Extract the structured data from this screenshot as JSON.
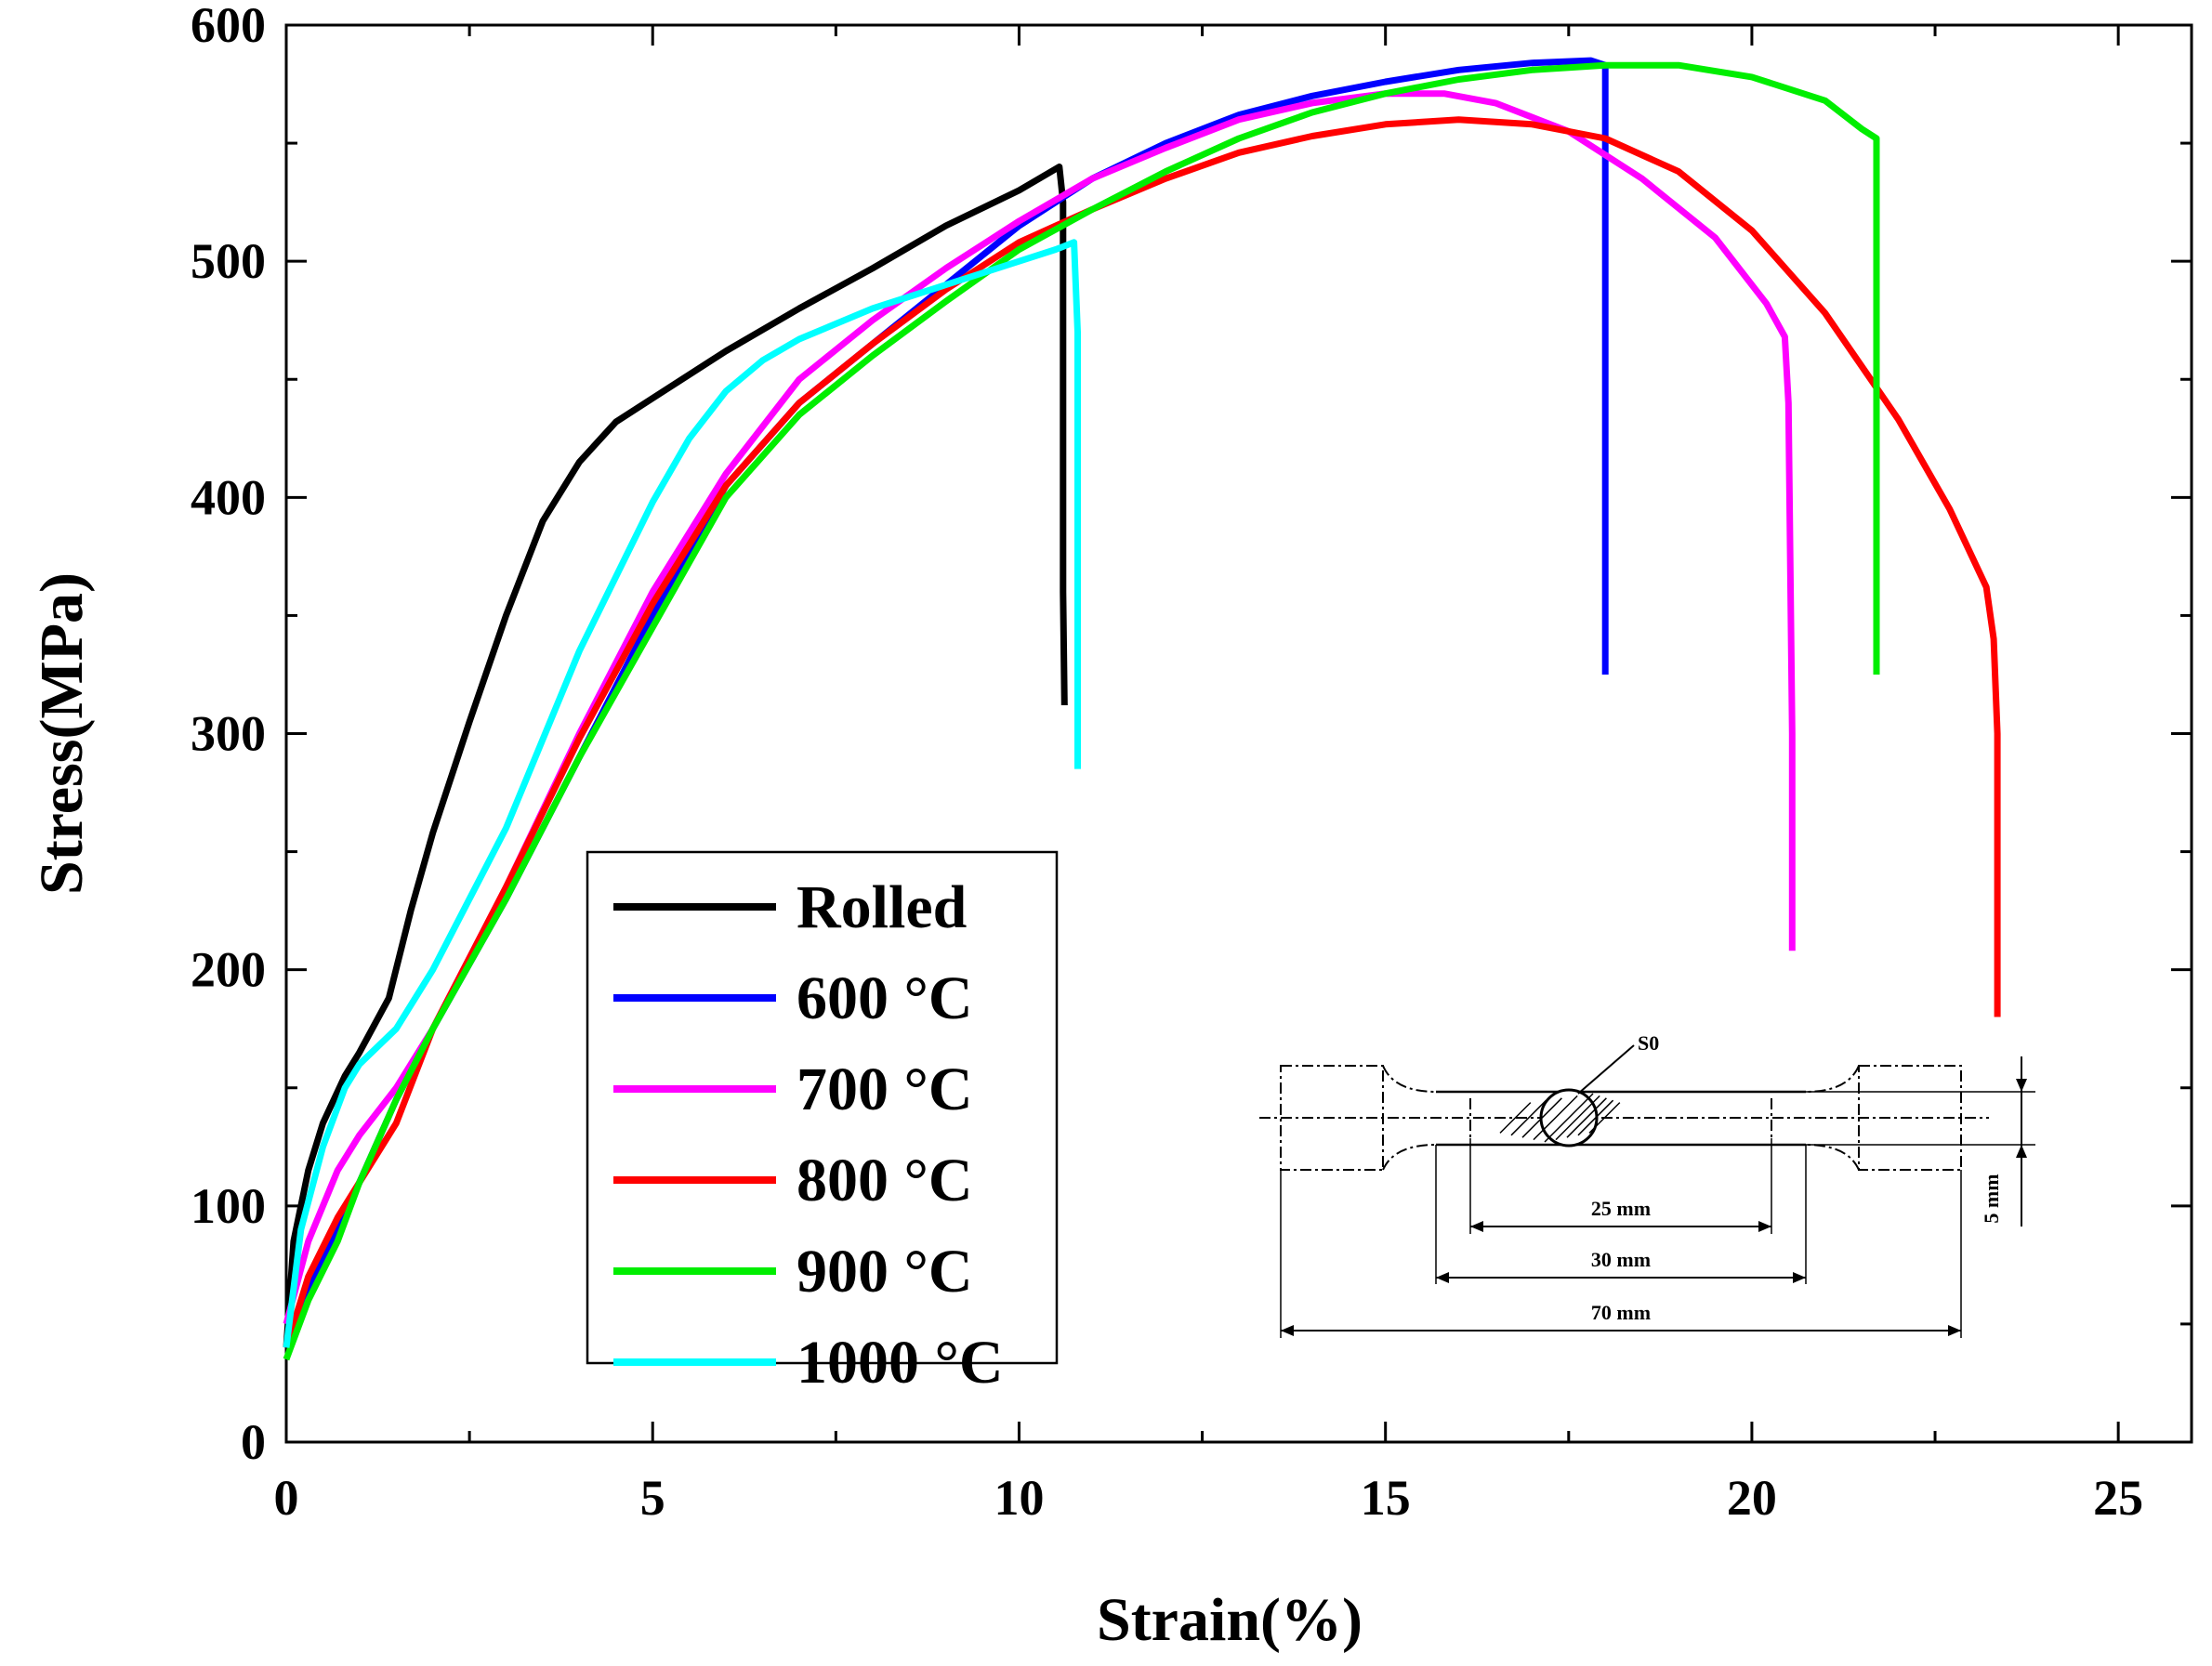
{
  "chart_data": {
    "type": "line",
    "title": "",
    "xlabel": "Strain(%)",
    "ylabel": "Stress(MPa)",
    "xlim": [
      0,
      26
    ],
    "ylim": [
      0,
      600
    ],
    "xticks": [
      0,
      5,
      10,
      15,
      20,
      25
    ],
    "yticks": [
      0,
      100,
      200,
      300,
      400,
      500,
      600
    ],
    "grid": false,
    "legend_position": "lower-left",
    "colors": {
      "Rolled": "#000000",
      "600 °C": "#0000ff",
      "700 °C": "#ff00ff",
      "800 °C": "#ff0000",
      "900 °C": "#00ee00",
      "1000 °C": "#00ffff"
    },
    "series": [
      {
        "name": "Rolled",
        "points": [
          [
            0,
            40
          ],
          [
            0.1,
            85
          ],
          [
            0.3,
            115
          ],
          [
            0.5,
            135
          ],
          [
            0.8,
            155
          ],
          [
            1.0,
            165
          ],
          [
            1.4,
            188
          ],
          [
            1.7,
            225
          ],
          [
            2.0,
            258
          ],
          [
            2.5,
            305
          ],
          [
            3.0,
            350
          ],
          [
            3.5,
            390
          ],
          [
            4.0,
            415
          ],
          [
            4.5,
            432
          ],
          [
            5.0,
            442
          ],
          [
            6.0,
            462
          ],
          [
            7.0,
            480
          ],
          [
            8.0,
            497
          ],
          [
            9.0,
            515
          ],
          [
            10.0,
            530
          ],
          [
            10.55,
            540
          ],
          [
            10.6,
            525
          ],
          [
            10.6,
            360
          ],
          [
            10.62,
            312
          ]
        ]
      },
      {
        "name": "600 °C",
        "points": [
          [
            0,
            40
          ],
          [
            0.3,
            65
          ],
          [
            0.7,
            90
          ],
          [
            1.0,
            110
          ],
          [
            1.5,
            145
          ],
          [
            2.0,
            175
          ],
          [
            3.0,
            230
          ],
          [
            4.0,
            290
          ],
          [
            5.0,
            350
          ],
          [
            6.0,
            405
          ],
          [
            7.0,
            440
          ],
          [
            8.0,
            465
          ],
          [
            9.0,
            490
          ],
          [
            10.0,
            515
          ],
          [
            11.0,
            535
          ],
          [
            12.0,
            550
          ],
          [
            13.0,
            562
          ],
          [
            14.0,
            570
          ],
          [
            15.0,
            576
          ],
          [
            16.0,
            581
          ],
          [
            17.0,
            584
          ],
          [
            17.8,
            585
          ],
          [
            18.0,
            583
          ],
          [
            18.0,
            520
          ],
          [
            18.0,
            325
          ]
        ]
      },
      {
        "name": "700 °C",
        "points": [
          [
            0,
            50
          ],
          [
            0.3,
            85
          ],
          [
            0.7,
            115
          ],
          [
            1.0,
            130
          ],
          [
            1.5,
            150
          ],
          [
            2.0,
            175
          ],
          [
            3.0,
            235
          ],
          [
            4.0,
            300
          ],
          [
            5.0,
            360
          ],
          [
            6.0,
            410
          ],
          [
            7.0,
            450
          ],
          [
            8.0,
            475
          ],
          [
            9.0,
            497
          ],
          [
            10.0,
            517
          ],
          [
            11.0,
            535
          ],
          [
            12.0,
            548
          ],
          [
            13.0,
            560
          ],
          [
            14.0,
            567
          ],
          [
            15.0,
            571
          ],
          [
            15.8,
            571
          ],
          [
            16.5,
            567
          ],
          [
            17.5,
            555
          ],
          [
            18.5,
            535
          ],
          [
            19.5,
            510
          ],
          [
            20.2,
            482
          ],
          [
            20.45,
            468
          ],
          [
            20.5,
            440
          ],
          [
            20.55,
            300
          ],
          [
            20.55,
            208
          ]
        ]
      },
      {
        "name": "800 °C",
        "points": [
          [
            0,
            40
          ],
          [
            0.3,
            70
          ],
          [
            0.7,
            95
          ],
          [
            1.0,
            110
          ],
          [
            1.5,
            135
          ],
          [
            2.0,
            175
          ],
          [
            3.0,
            235
          ],
          [
            4.0,
            298
          ],
          [
            5.0,
            355
          ],
          [
            6.0,
            405
          ],
          [
            7.0,
            440
          ],
          [
            8.0,
            465
          ],
          [
            9.0,
            488
          ],
          [
            10.0,
            508
          ],
          [
            11.0,
            522
          ],
          [
            12.0,
            535
          ],
          [
            13.0,
            546
          ],
          [
            14.0,
            553
          ],
          [
            15.0,
            558
          ],
          [
            16.0,
            560
          ],
          [
            17.0,
            558
          ],
          [
            18.0,
            552
          ],
          [
            19.0,
            538
          ],
          [
            20.0,
            513
          ],
          [
            21.0,
            478
          ],
          [
            22.0,
            433
          ],
          [
            22.7,
            395
          ],
          [
            23.2,
            362
          ],
          [
            23.3,
            340
          ],
          [
            23.35,
            300
          ],
          [
            23.35,
            180
          ]
        ]
      },
      {
        "name": "900 °C",
        "points": [
          [
            0,
            35
          ],
          [
            0.3,
            60
          ],
          [
            0.7,
            85
          ],
          [
            1.0,
            110
          ],
          [
            1.5,
            145
          ],
          [
            2.0,
            175
          ],
          [
            3.0,
            230
          ],
          [
            4.0,
            290
          ],
          [
            5.0,
            345
          ],
          [
            6.0,
            400
          ],
          [
            7.0,
            435
          ],
          [
            8.0,
            460
          ],
          [
            9.0,
            483
          ],
          [
            10.0,
            505
          ],
          [
            11.0,
            522
          ],
          [
            12.0,
            538
          ],
          [
            13.0,
            552
          ],
          [
            14.0,
            563
          ],
          [
            15.0,
            571
          ],
          [
            16.0,
            577
          ],
          [
            17.0,
            581
          ],
          [
            18.0,
            583
          ],
          [
            19.0,
            583
          ],
          [
            20.0,
            578
          ],
          [
            21.0,
            568
          ],
          [
            21.5,
            556
          ],
          [
            21.7,
            552
          ],
          [
            21.7,
            500
          ],
          [
            21.7,
            325
          ]
        ]
      },
      {
        "name": "1000 °C",
        "points": [
          [
            0,
            40
          ],
          [
            0.2,
            90
          ],
          [
            0.5,
            125
          ],
          [
            0.8,
            150
          ],
          [
            1.0,
            160
          ],
          [
            1.5,
            175
          ],
          [
            2.0,
            200
          ],
          [
            3.0,
            260
          ],
          [
            4.0,
            335
          ],
          [
            5.0,
            398
          ],
          [
            5.5,
            425
          ],
          [
            6.0,
            445
          ],
          [
            6.5,
            458
          ],
          [
            7.0,
            467
          ],
          [
            8.0,
            480
          ],
          [
            9.0,
            490
          ],
          [
            10.0,
            500
          ],
          [
            10.5,
            505
          ],
          [
            10.75,
            508
          ],
          [
            10.8,
            470
          ],
          [
            10.8,
            285
          ]
        ]
      }
    ]
  },
  "inset": {
    "section_label": "S0",
    "dim_25": "25 mm",
    "dim_30": "30 mm",
    "dim_70": "70 mm",
    "dim_5": "5 mm"
  }
}
